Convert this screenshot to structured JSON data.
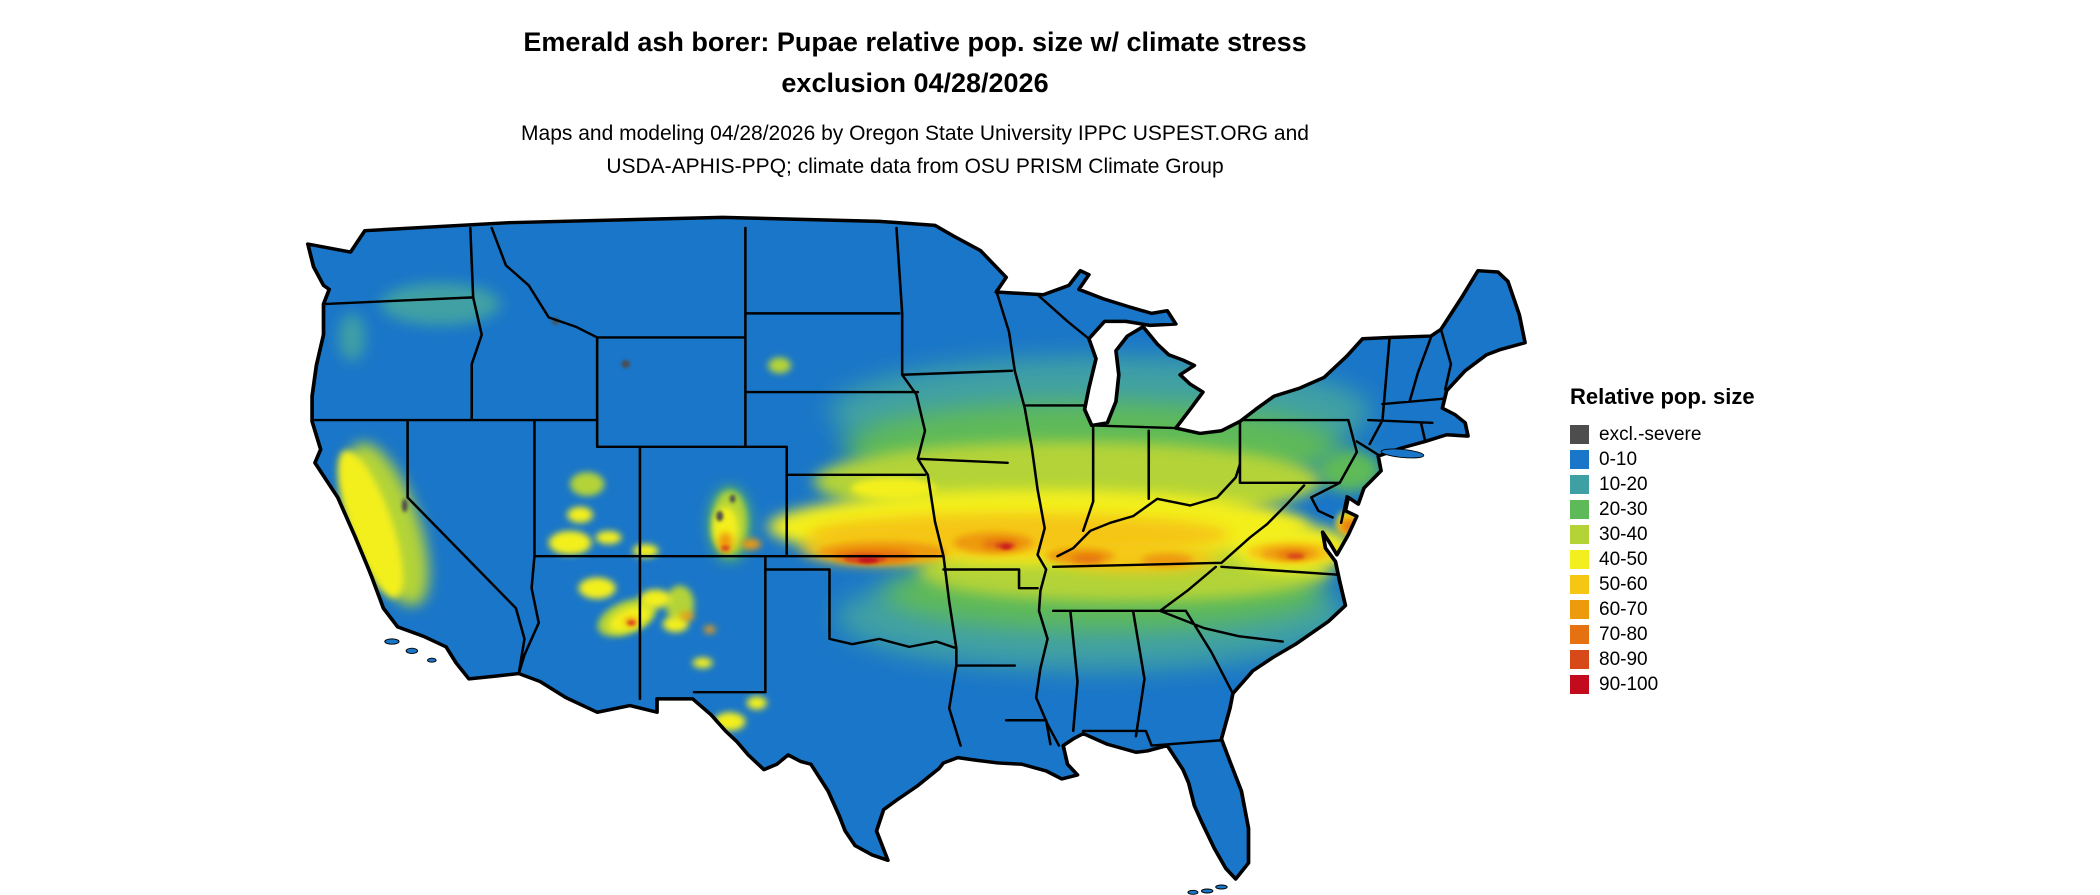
{
  "header": {
    "title_line1": "Emerald ash borer: Pupae relative pop. size w/ climate stress",
    "title_line2": "exclusion 04/28/2026",
    "subtitle_line1": "Maps and modeling 04/28/2026 by Oregon State University IPPC USPEST.ORG and",
    "subtitle_line2": "USDA-APHIS-PPQ; climate data from OSU PRISM Climate Group"
  },
  "legend": {
    "title": "Relative pop. size",
    "items": [
      {
        "label": "excl.-severe",
        "color": "#4d4d4d"
      },
      {
        "label": "0-10",
        "color": "#1a76c8"
      },
      {
        "label": "10-20",
        "color": "#3fa0a4"
      },
      {
        "label": "20-30",
        "color": "#5eba58"
      },
      {
        "label": "30-40",
        "color": "#b3d337"
      },
      {
        "label": "40-50",
        "color": "#f3ef1e"
      },
      {
        "label": "50-60",
        "color": "#f5c614"
      },
      {
        "label": "60-70",
        "color": "#ee9a0d"
      },
      {
        "label": "70-80",
        "color": "#e67110"
      },
      {
        "label": "80-90",
        "color": "#d8491a"
      },
      {
        "label": "90-100",
        "color": "#c30b1e"
      }
    ]
  },
  "map": {
    "region": "Contiguous United States"
  }
}
